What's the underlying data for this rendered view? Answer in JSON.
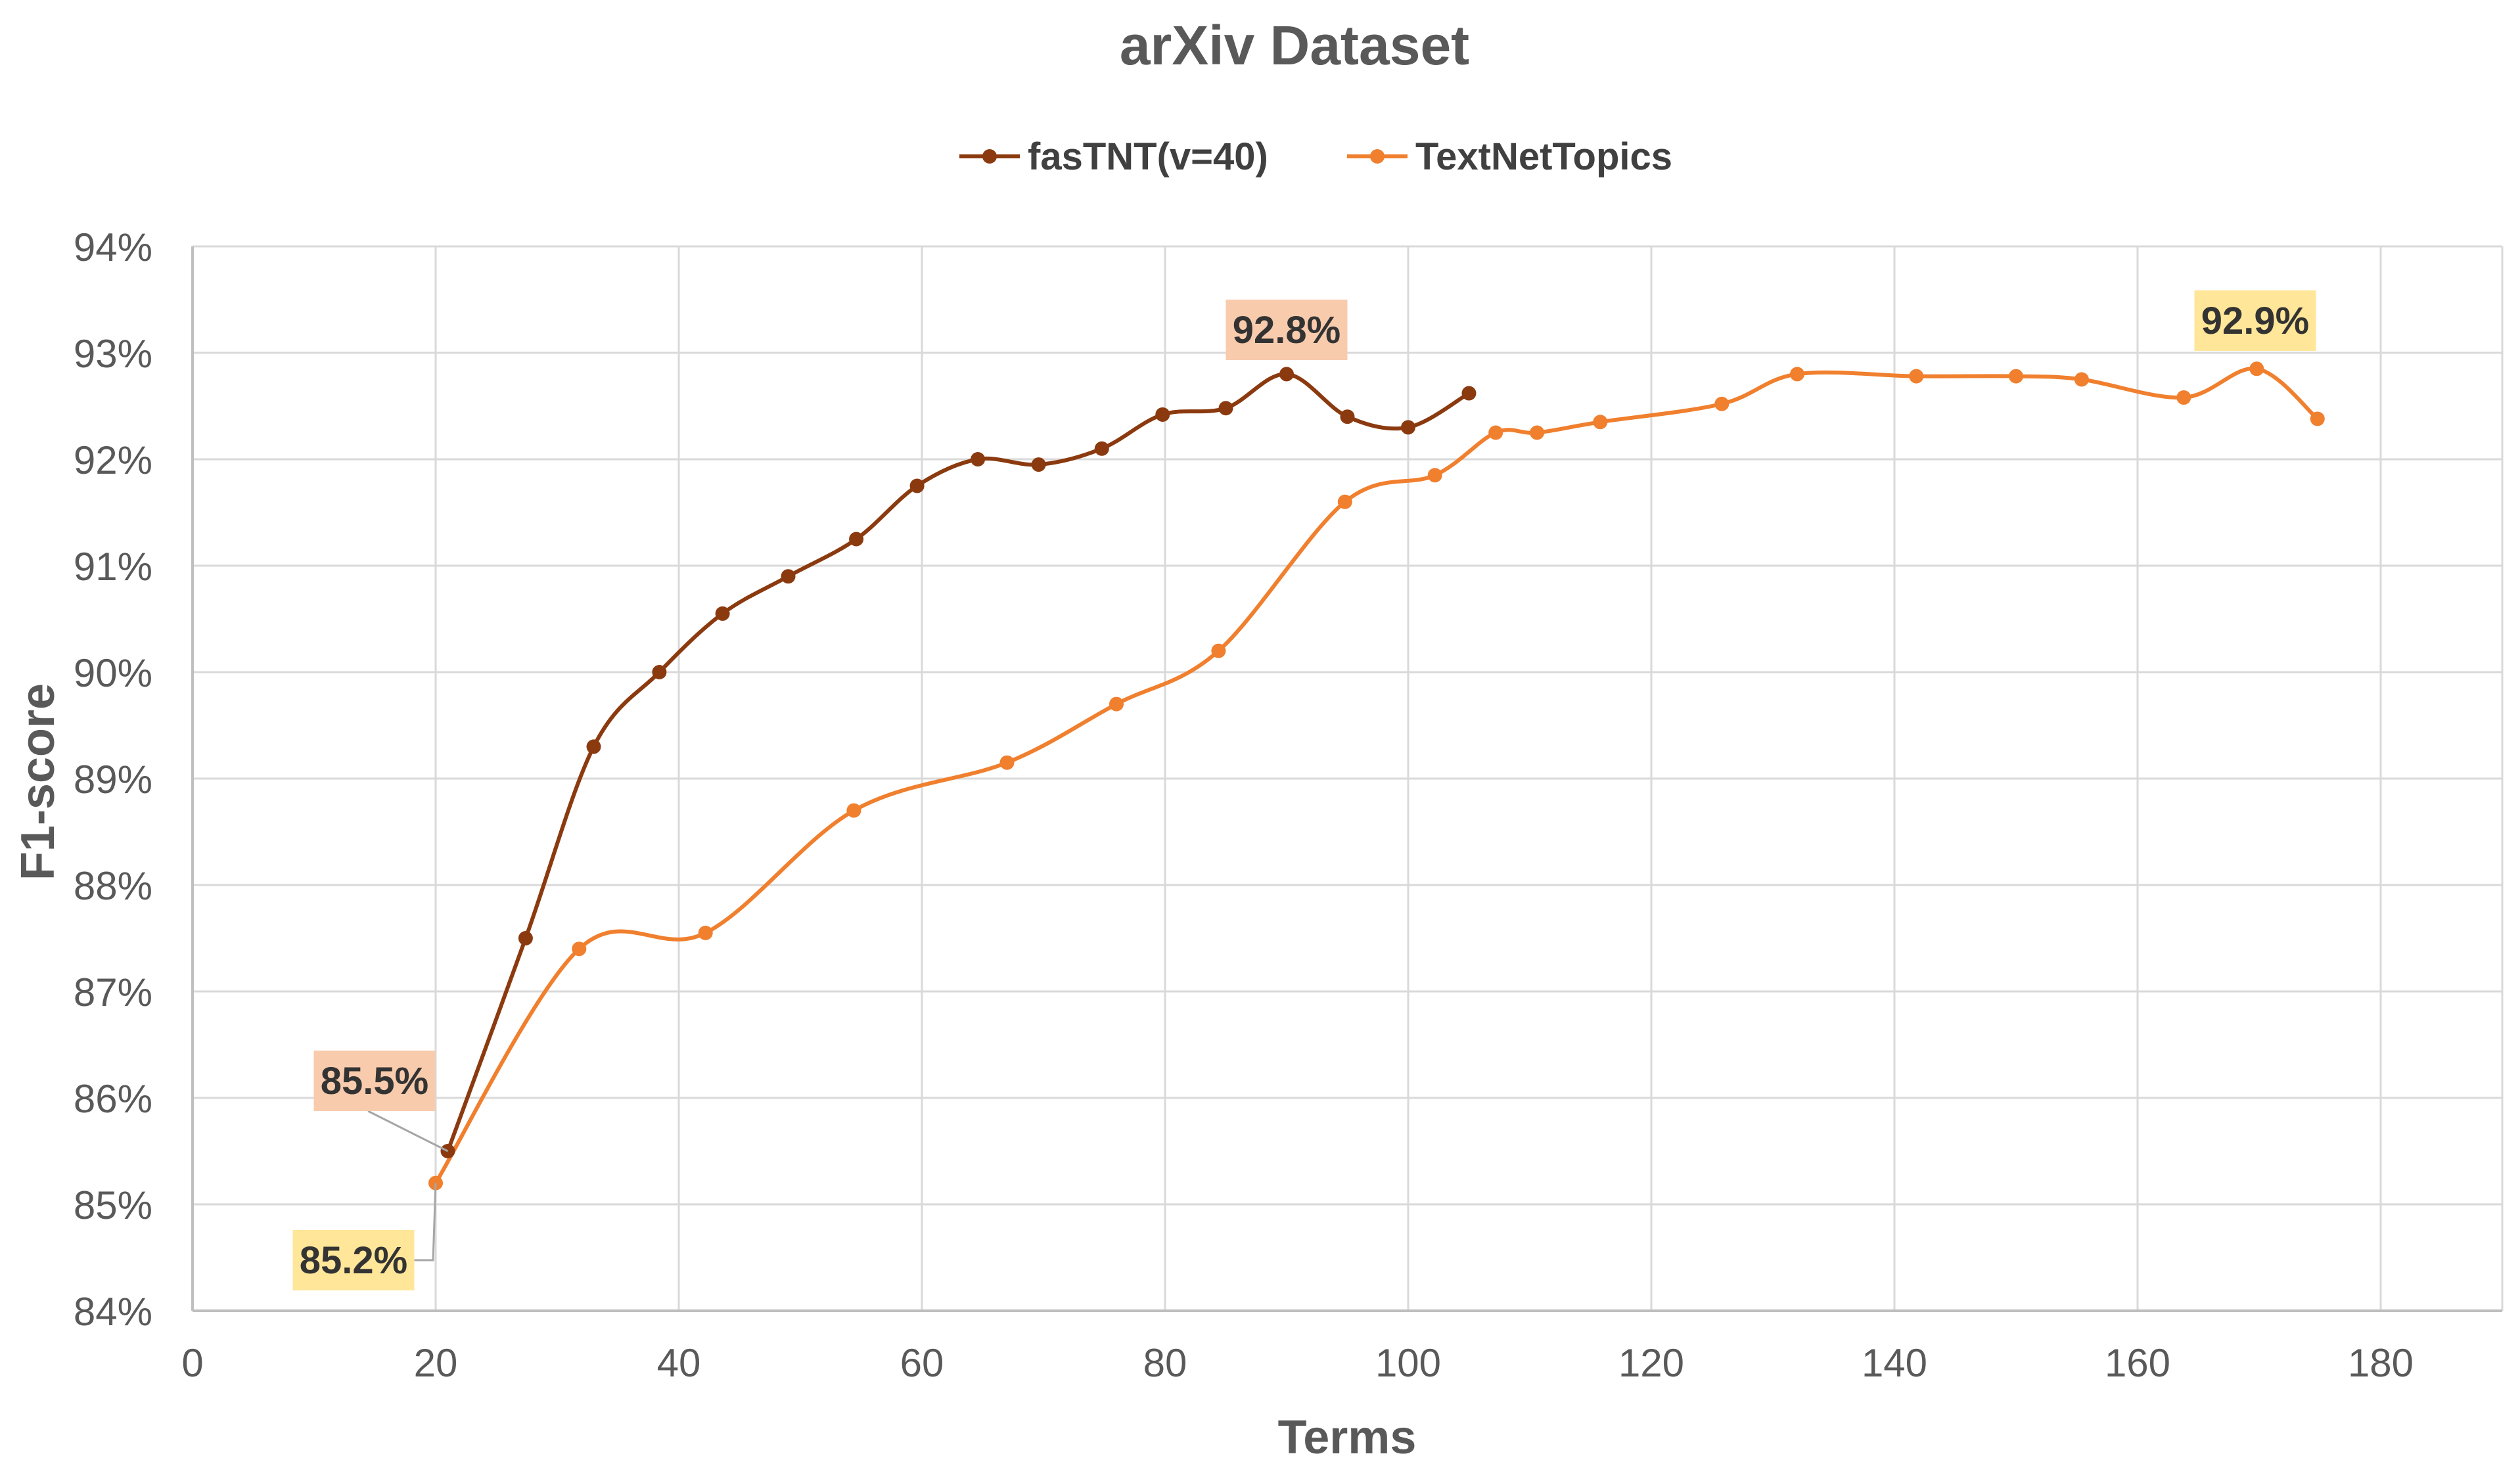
{
  "chart_data": {
    "type": "line",
    "title": "arXiv Dataset",
    "xlabel": "Terms",
    "ylabel": "F1-score",
    "xlim": [
      0,
      190
    ],
    "ylim": [
      84,
      94
    ],
    "x_ticks": [
      0,
      20,
      40,
      60,
      80,
      100,
      120,
      140,
      160,
      180
    ],
    "y_ticks": [
      84,
      85,
      86,
      87,
      88,
      89,
      90,
      91,
      92,
      93,
      94
    ],
    "y_tick_labels": [
      "84%",
      "85%",
      "86%",
      "87%",
      "88%",
      "89%",
      "90%",
      "91%",
      "92%",
      "93%",
      "94%"
    ],
    "grid": true,
    "legend_position": "top",
    "series": [
      {
        "name": "fasTNT(v=40)",
        "color": "#8B3A0F",
        "x": [
          21,
          27.4,
          33,
          38.4,
          43.6,
          49,
          54.6,
          59.6,
          64.6,
          69.6,
          74.8,
          79.8,
          85,
          90,
          95,
          100,
          105
        ],
        "y": [
          85.5,
          87.5,
          89.3,
          90.0,
          90.55,
          90.9,
          91.25,
          91.75,
          92.0,
          91.95,
          92.1,
          92.42,
          92.48,
          92.8,
          92.4,
          92.3,
          92.62
        ]
      },
      {
        "name": "TextNetTopics",
        "color": "#F07F2E",
        "x": [
          20,
          31.8,
          42.2,
          54.4,
          67,
          76,
          84.4,
          94.8,
          102.2,
          107.2,
          110.6,
          115.8,
          125.8,
          132,
          141.8,
          150,
          155.4,
          163.8,
          169.8,
          174.8
        ],
        "y": [
          85.2,
          87.4,
          87.55,
          88.7,
          89.15,
          89.7,
          90.2,
          91.6,
          91.85,
          92.25,
          92.25,
          92.35,
          92.52,
          92.8,
          92.78,
          92.78,
          92.75,
          92.58,
          92.85,
          92.38
        ]
      }
    ],
    "annotations": [
      {
        "text": "85.5%",
        "series": "fasTNT(v=40)",
        "point_x": 21,
        "point_y": 85.5,
        "bg": "#F8CBAD"
      },
      {
        "text": "92.8%",
        "series": "fasTNT(v=40)",
        "point_x": 90,
        "point_y": 92.8,
        "bg": "#F8CBAD"
      },
      {
        "text": "85.2%",
        "series": "TextNetTopics",
        "point_x": 20,
        "point_y": 85.2,
        "bg": "#FFE699"
      },
      {
        "text": "92.9%",
        "series": "TextNetTopics",
        "point_x": 169.8,
        "point_y": 92.85,
        "bg": "#FFE699"
      }
    ]
  }
}
